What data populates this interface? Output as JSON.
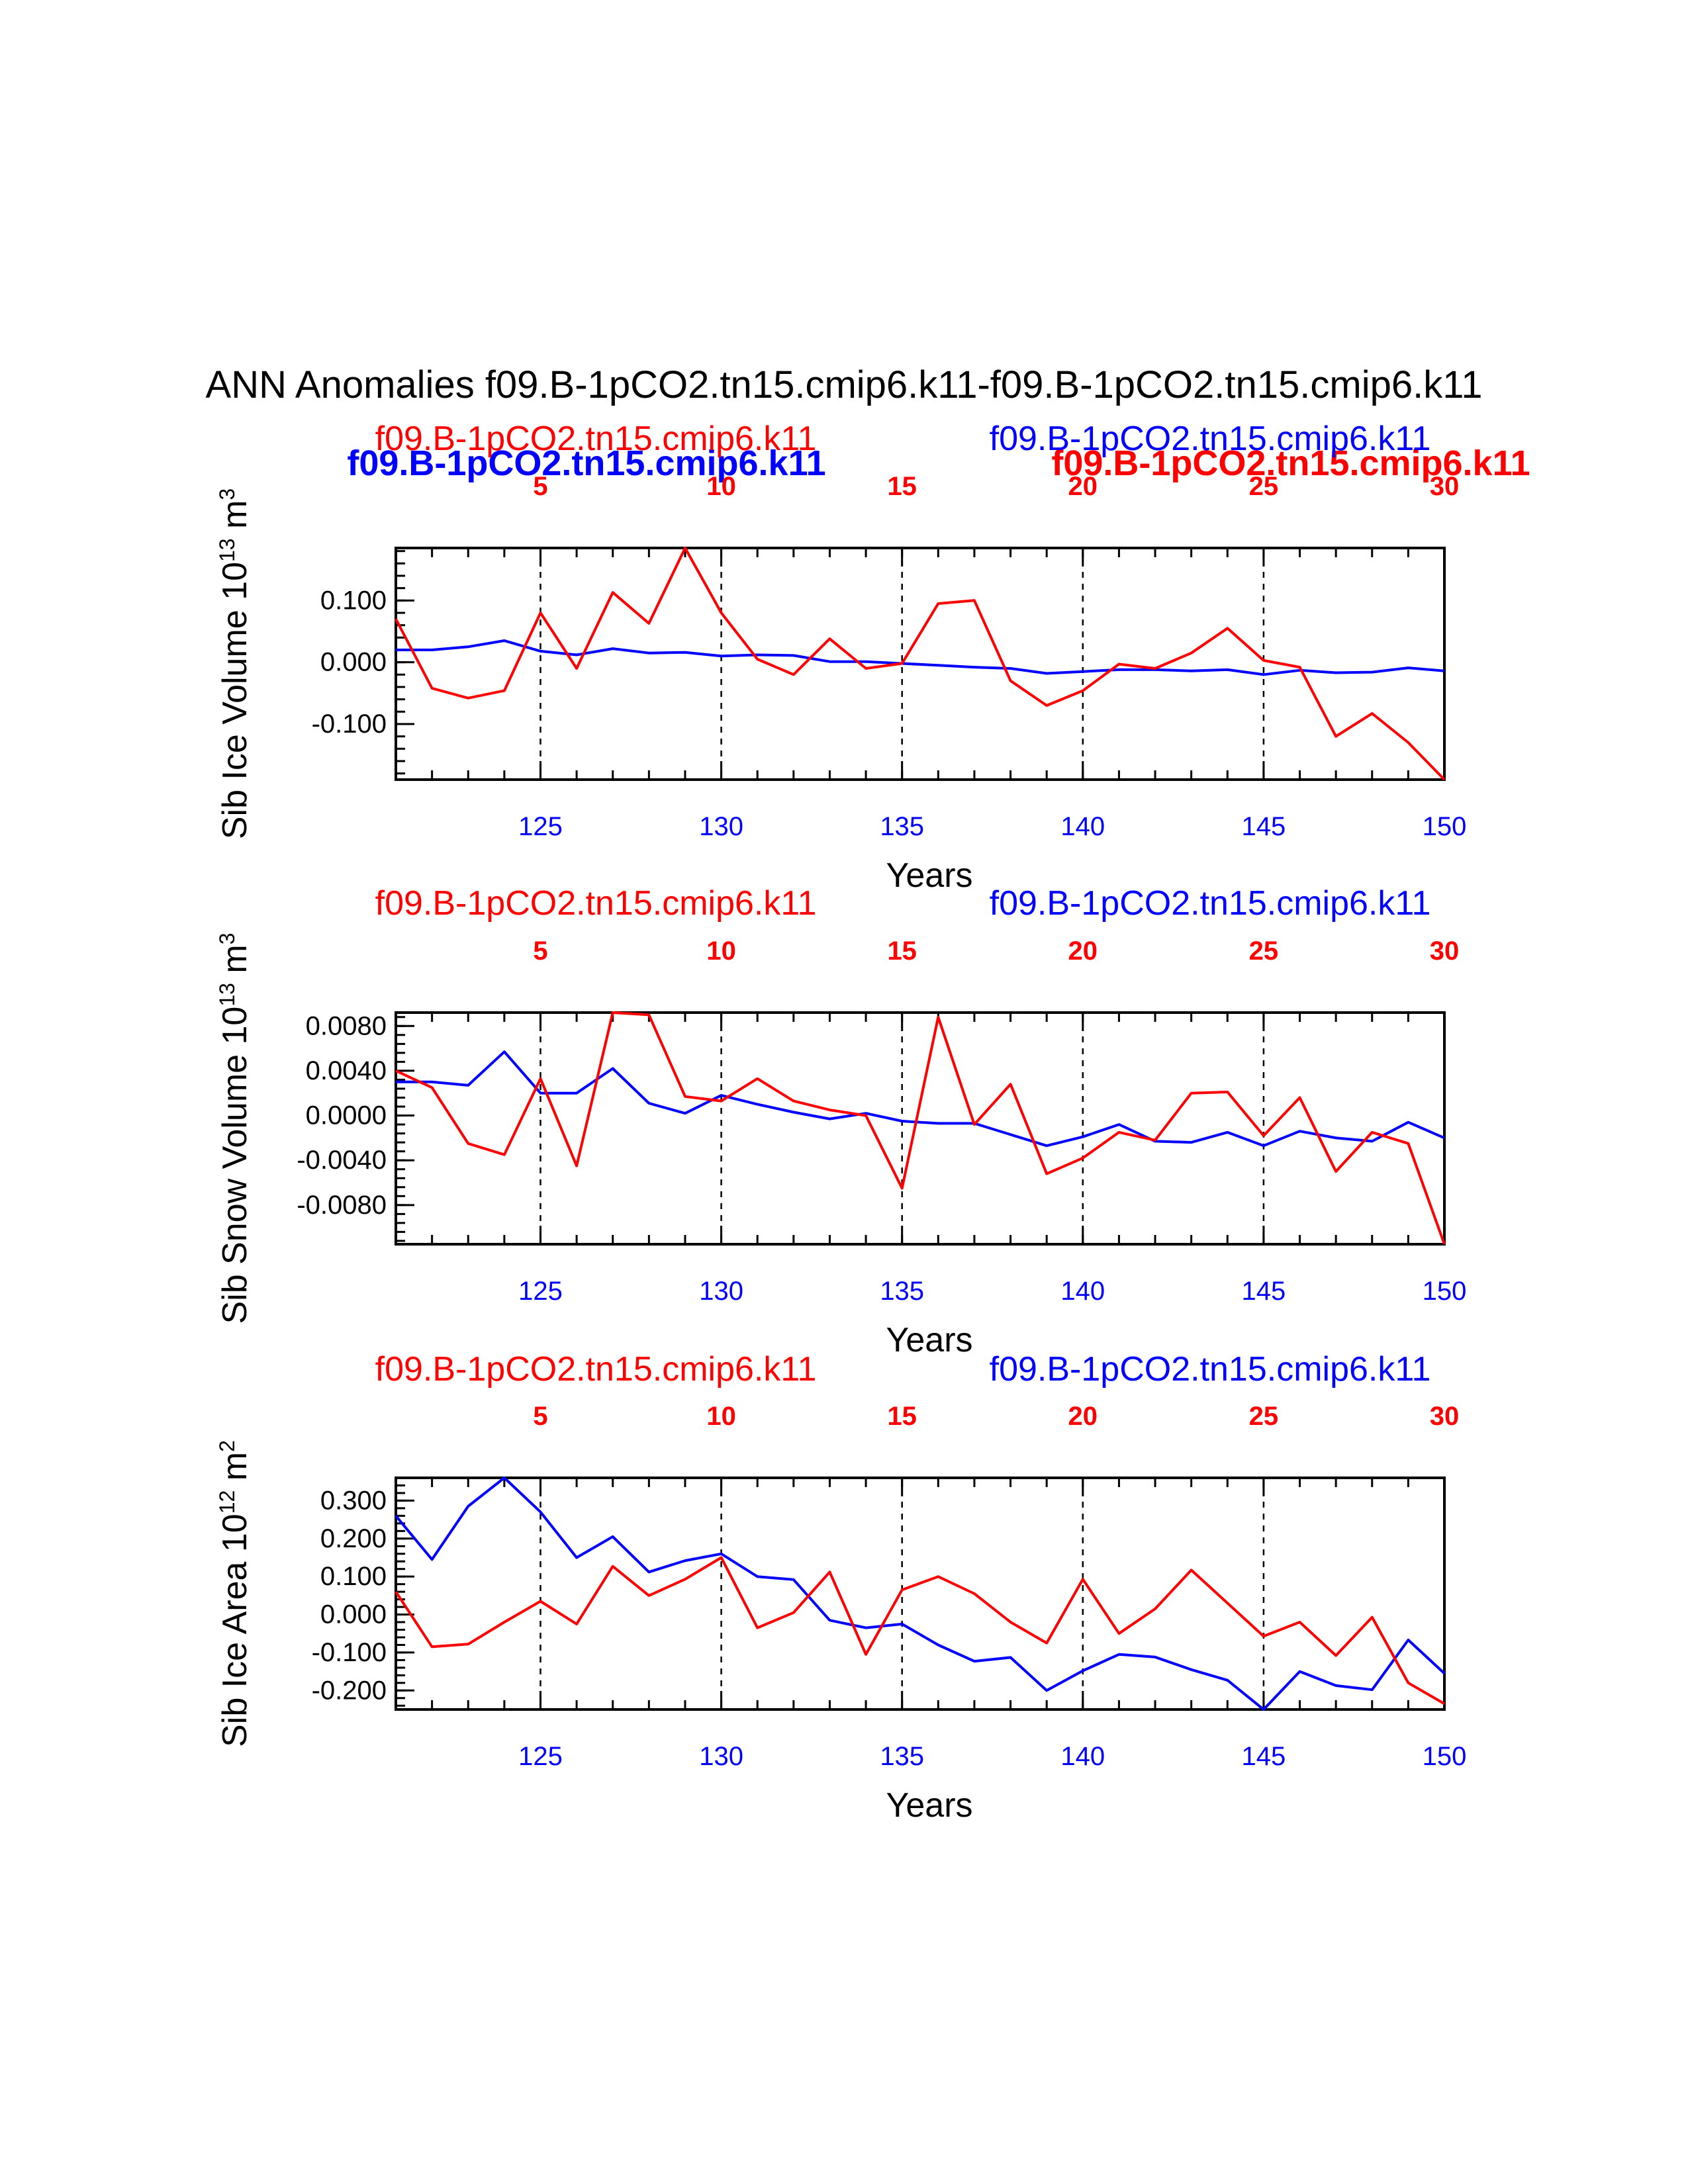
{
  "title": "ANN Anomalies f09.B-1pCO2.tn15.cmip6.k11-f09.B-1pCO2.tn15.cmip6.k11",
  "colors": {
    "run_a": "#ff0000",
    "run_b": "#0000ff",
    "axis": "#000000"
  },
  "panel_labels": {
    "left": "f09.B-1pCO2.tn15.cmip6.k11",
    "right": "f09.B-1pCO2.tn15.cmip6.k11",
    "bold_blue": "f09.B-1pCO2.tn15.cmip6.k11",
    "bold_red": "f09.B-1pCO2.tn15.cmip6.k11"
  },
  "chart_data": [
    {
      "type": "line",
      "ylabel": "Sib Ice Volume 10",
      "ylabel_exp": "13",
      "ylabel_unit": " m",
      "ylabel_unit_exp": "3",
      "xlabel": "Years",
      "xlim": [
        121,
        150
      ],
      "ylim": [
        -0.19,
        0.185
      ],
      "yticks": [
        0.1,
        0.0,
        -0.1
      ],
      "ytick_labels": [
        "0.100",
        "0.000",
        "-0.100"
      ],
      "bottom_ticks": [
        125,
        130,
        135,
        140,
        145,
        150
      ],
      "top_ticks": [
        5,
        10,
        15,
        20,
        25,
        30
      ],
      "top_tick_positions": [
        125,
        130,
        135,
        140,
        145,
        150
      ],
      "x": [
        121,
        122,
        123,
        124,
        125,
        126,
        127,
        128,
        129,
        130,
        131,
        132,
        133,
        134,
        135,
        136,
        137,
        138,
        139,
        140,
        141,
        142,
        143,
        144,
        145,
        146,
        147,
        148,
        149,
        150
      ],
      "series": [
        {
          "color": "#ff0000",
          "values": [
            0.07,
            -0.042,
            -0.058,
            -0.046,
            0.08,
            -0.01,
            0.113,
            0.063,
            0.185,
            0.08,
            0.005,
            -0.02,
            0.038,
            -0.01,
            -0.002,
            0.095,
            0.1,
            -0.03,
            -0.07,
            -0.046,
            -0.003,
            -0.01,
            0.015,
            0.055,
            0.003,
            -0.008,
            -0.12,
            -0.083,
            -0.13,
            -0.19
          ]
        },
        {
          "color": "#0000ff",
          "values": [
            0.02,
            0.02,
            0.025,
            0.035,
            0.018,
            0.012,
            0.022,
            0.015,
            0.016,
            0.01,
            0.012,
            0.011,
            0.001,
            0.001,
            -0.002,
            -0.005,
            -0.008,
            -0.01,
            -0.018,
            -0.015,
            -0.012,
            -0.012,
            -0.014,
            -0.012,
            -0.02,
            -0.013,
            -0.017,
            -0.016,
            -0.009,
            -0.014
          ]
        }
      ]
    },
    {
      "type": "line",
      "ylabel": "Sib Snow Volume 10",
      "ylabel_exp": "13",
      "ylabel_unit": " m",
      "ylabel_unit_exp": "3",
      "xlabel": "Years",
      "xlim": [
        121,
        150
      ],
      "ylim": [
        -0.0115,
        0.0092
      ],
      "yticks": [
        0.008,
        0.004,
        0.0,
        -0.004,
        -0.008
      ],
      "ytick_labels": [
        "0.0080",
        "0.0040",
        "0.0000",
        "-0.0040",
        "-0.0080"
      ],
      "bottom_ticks": [
        125,
        130,
        135,
        140,
        145,
        150
      ],
      "top_ticks": [
        5,
        10,
        15,
        20,
        25,
        30
      ],
      "top_tick_positions": [
        125,
        130,
        135,
        140,
        145,
        150
      ],
      "x": [
        121,
        122,
        123,
        124,
        125,
        126,
        127,
        128,
        129,
        130,
        131,
        132,
        133,
        134,
        135,
        136,
        137,
        138,
        139,
        140,
        141,
        142,
        143,
        144,
        145,
        146,
        147,
        148,
        149,
        150
      ],
      "series": [
        {
          "color": "#ff0000",
          "values": [
            0.004,
            0.0025,
            -0.0025,
            -0.0035,
            0.0033,
            -0.0045,
            0.0092,
            0.009,
            0.0017,
            0.0013,
            0.0033,
            0.0013,
            0.0005,
            0.0,
            -0.0065,
            0.0088,
            -0.0008,
            0.0028,
            -0.0052,
            -0.0038,
            -0.0015,
            -0.0022,
            0.002,
            0.0021,
            -0.0018,
            0.0016,
            -0.005,
            -0.0015,
            -0.0025,
            -0.0115
          ]
        },
        {
          "color": "#0000ff",
          "values": [
            0.003,
            0.003,
            0.0027,
            0.0057,
            0.002,
            0.002,
            0.0042,
            0.0011,
            0.0002,
            0.0018,
            0.001,
            0.0003,
            -0.0003,
            0.0002,
            -0.0005,
            -0.0007,
            -0.0007,
            -0.0017,
            -0.0027,
            -0.0019,
            -0.0008,
            -0.0023,
            -0.0024,
            -0.0015,
            -0.0027,
            -0.0014,
            -0.002,
            -0.0023,
            -0.0006,
            -0.002
          ]
        }
      ]
    },
    {
      "type": "line",
      "ylabel": "Sib Ice Area 10",
      "ylabel_exp": "12",
      "ylabel_unit": " m",
      "ylabel_unit_exp": "2",
      "xlabel": "Years",
      "xlim": [
        121,
        150
      ],
      "ylim": [
        -0.25,
        0.36
      ],
      "yticks": [
        0.3,
        0.2,
        0.1,
        0.0,
        -0.1,
        -0.2
      ],
      "ytick_labels": [
        "0.300",
        "0.200",
        "0.100",
        "0.000",
        "-0.100",
        "-0.200"
      ],
      "bottom_ticks": [
        125,
        130,
        135,
        140,
        145,
        150
      ],
      "top_ticks": [
        5,
        10,
        15,
        20,
        25,
        30
      ],
      "top_tick_positions": [
        125,
        130,
        135,
        140,
        145,
        150
      ],
      "x": [
        121,
        122,
        123,
        124,
        125,
        126,
        127,
        128,
        129,
        130,
        131,
        132,
        133,
        134,
        135,
        136,
        137,
        138,
        139,
        140,
        141,
        142,
        143,
        144,
        145,
        146,
        147,
        148,
        149,
        150
      ],
      "series": [
        {
          "color": "#ff0000",
          "values": [
            0.06,
            -0.085,
            -0.078,
            -0.02,
            0.035,
            -0.025,
            0.127,
            0.05,
            0.093,
            0.15,
            -0.035,
            0.005,
            0.112,
            -0.105,
            0.065,
            0.1,
            0.055,
            -0.02,
            -0.075,
            0.093,
            -0.05,
            0.015,
            0.117,
            0.03,
            -0.057,
            -0.02,
            -0.108,
            -0.007,
            -0.18,
            -0.235
          ]
        },
        {
          "color": "#0000ff",
          "values": [
            0.26,
            0.145,
            0.285,
            0.36,
            0.27,
            0.15,
            0.205,
            0.112,
            0.142,
            0.16,
            0.1,
            0.092,
            -0.015,
            -0.035,
            -0.025,
            -0.08,
            -0.123,
            -0.113,
            -0.2,
            -0.148,
            -0.105,
            -0.112,
            -0.145,
            -0.173,
            -0.25,
            -0.15,
            -0.187,
            -0.198,
            -0.067,
            -0.155
          ]
        }
      ]
    }
  ]
}
